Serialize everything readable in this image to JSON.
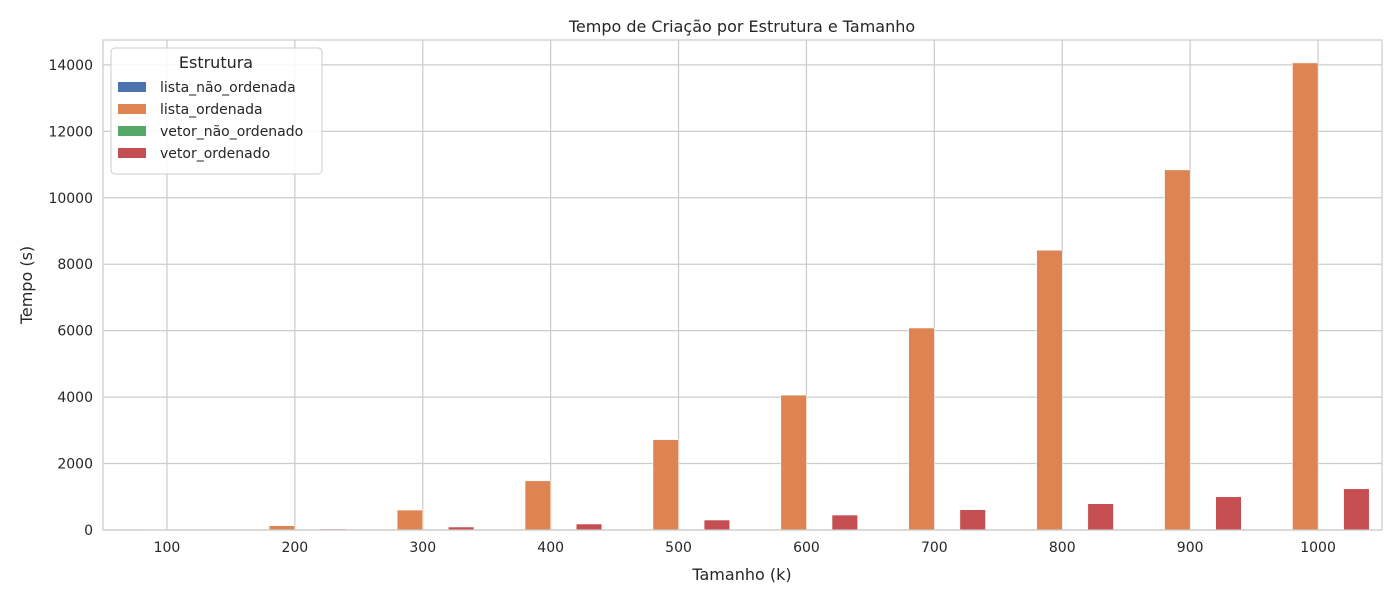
{
  "chart_data": {
    "type": "bar",
    "title": "Tempo de Criação por Estrutura e Tamanho",
    "xlabel": "Tamanho (k)",
    "ylabel": "Tempo (s)",
    "categories": [
      "100",
      "200",
      "300",
      "400",
      "500",
      "600",
      "700",
      "800",
      "900",
      "1000"
    ],
    "yticks": [
      "0",
      "2000",
      "4000",
      "6000",
      "8000",
      "10000",
      "12000",
      "14000"
    ],
    "ylim": [
      0,
      14750
    ],
    "grid": true,
    "legend": {
      "title": "Estrutura",
      "placement": "top-left"
    },
    "series": [
      {
        "name": "lista_não_ordenada",
        "color": "#4c72b0",
        "values": [
          0,
          0,
          0,
          0,
          0,
          0,
          0,
          0,
          0,
          0
        ]
      },
      {
        "name": "lista_ordenada",
        "color": "#dd8452",
        "values": [
          10,
          130,
          600,
          1480,
          2720,
          4060,
          6080,
          8420,
          10840,
          14060
        ]
      },
      {
        "name": "vetor_não_ordenado",
        "color": "#55a868",
        "values": [
          0,
          0,
          0,
          0,
          0,
          0,
          0,
          0,
          0,
          0
        ]
      },
      {
        "name": "vetor_ordenado",
        "color": "#c44e52",
        "values": [
          5,
          30,
          90,
          180,
          300,
          450,
          610,
          790,
          1000,
          1240
        ]
      }
    ]
  }
}
